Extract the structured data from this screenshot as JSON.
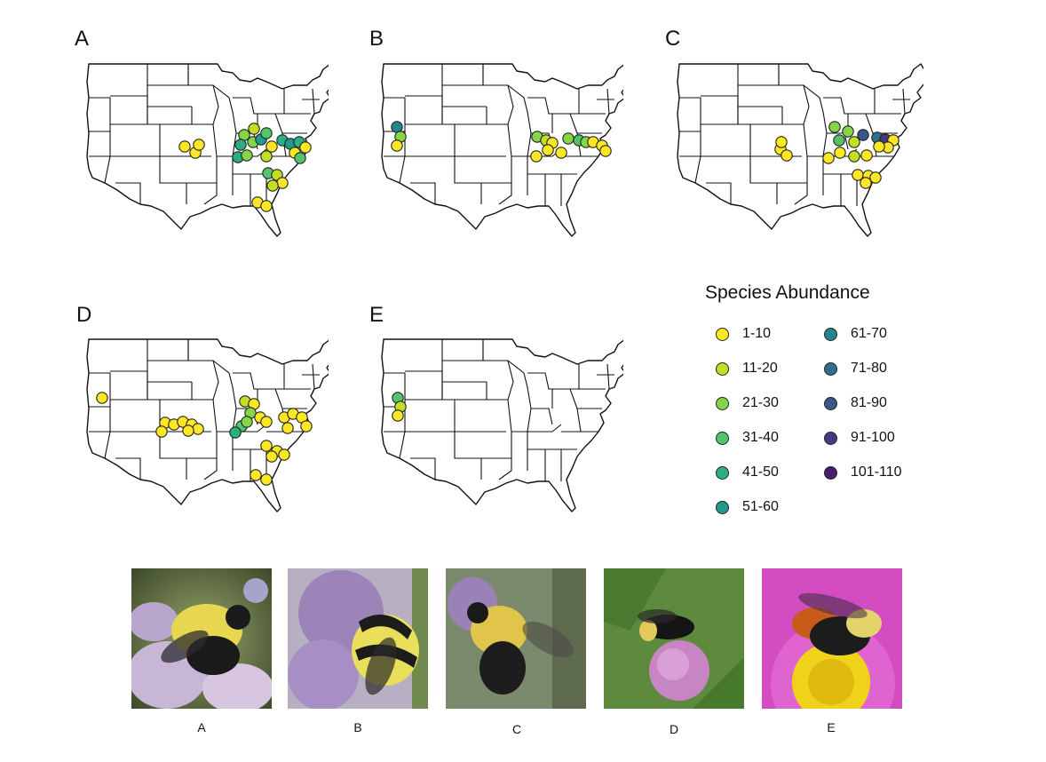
{
  "panels": [
    {
      "id": "A",
      "points": [
        [
          208,
          165,
          0
        ],
        [
          220,
          172,
          0
        ],
        [
          224,
          163,
          0
        ],
        [
          275,
          152,
          2
        ],
        [
          286,
          145,
          1
        ],
        [
          285,
          160,
          2
        ],
        [
          271,
          163,
          4
        ],
        [
          294,
          157,
          5
        ],
        [
          300,
          150,
          3
        ],
        [
          306,
          165,
          0
        ],
        [
          318,
          158,
          4
        ],
        [
          327,
          162,
          5
        ],
        [
          337,
          160,
          4
        ],
        [
          344,
          166,
          0
        ],
        [
          332,
          172,
          0
        ],
        [
          338,
          178,
          3
        ],
        [
          268,
          177,
          4
        ],
        [
          278,
          175,
          2
        ],
        [
          300,
          176,
          1
        ],
        [
          302,
          195,
          3
        ],
        [
          312,
          197,
          1
        ],
        [
          318,
          206,
          0
        ],
        [
          307,
          209,
          1
        ],
        [
          290,
          228,
          0
        ],
        [
          300,
          232,
          0
        ]
      ]
    },
    {
      "id": "B",
      "points": [
        [
          447,
          143,
          6
        ],
        [
          451,
          154,
          2
        ],
        [
          447,
          164,
          0
        ],
        [
          605,
          154,
          2
        ],
        [
          615,
          158,
          1
        ],
        [
          622,
          161,
          0
        ],
        [
          640,
          156,
          2
        ],
        [
          652,
          158,
          3
        ],
        [
          660,
          160,
          2
        ],
        [
          668,
          160,
          0
        ],
        [
          678,
          164,
          0
        ],
        [
          682,
          170,
          0
        ],
        [
          604,
          176,
          0
        ],
        [
          617,
          169,
          0
        ],
        [
          632,
          172,
          0
        ]
      ]
    },
    {
      "id": "C",
      "points": [
        [
          879,
          168,
          0
        ],
        [
          886,
          175,
          0
        ],
        [
          880,
          160,
          0
        ],
        [
          940,
          143,
          2
        ],
        [
          955,
          148,
          2
        ],
        [
          945,
          158,
          3
        ],
        [
          962,
          160,
          1
        ],
        [
          972,
          152,
          8
        ],
        [
          988,
          155,
          7
        ],
        [
          997,
          157,
          9
        ],
        [
          1006,
          158,
          0
        ],
        [
          1000,
          166,
          0
        ],
        [
          990,
          165,
          0
        ],
        [
          946,
          172,
          0
        ],
        [
          933,
          178,
          0
        ],
        [
          962,
          176,
          1
        ],
        [
          976,
          175,
          0
        ],
        [
          966,
          197,
          0
        ],
        [
          978,
          198,
          0
        ],
        [
          975,
          206,
          0
        ],
        [
          986,
          200,
          0
        ]
      ]
    },
    {
      "id": "D",
      "points": [
        [
          115,
          448,
          0
        ],
        [
          186,
          476,
          0
        ],
        [
          196,
          478,
          0
        ],
        [
          206,
          475,
          0
        ],
        [
          216,
          478,
          0
        ],
        [
          223,
          483,
          0
        ],
        [
          182,
          486,
          0
        ],
        [
          212,
          485,
          0
        ],
        [
          276,
          452,
          1
        ],
        [
          286,
          455,
          0
        ],
        [
          282,
          465,
          2
        ],
        [
          293,
          470,
          0
        ],
        [
          272,
          480,
          3
        ],
        [
          265,
          487,
          4
        ],
        [
          278,
          475,
          2
        ],
        [
          300,
          475,
          0
        ],
        [
          320,
          470,
          0
        ],
        [
          330,
          466,
          0
        ],
        [
          340,
          470,
          0
        ],
        [
          345,
          480,
          0
        ],
        [
          324,
          482,
          0
        ],
        [
          300,
          502,
          0
        ],
        [
          312,
          508,
          0
        ],
        [
          320,
          512,
          0
        ],
        [
          306,
          514,
          0
        ],
        [
          288,
          535,
          0
        ],
        [
          300,
          540,
          0
        ]
      ]
    },
    {
      "id": "E",
      "points": [
        [
          448,
          448,
          3
        ],
        [
          451,
          458,
          1
        ],
        [
          448,
          468,
          0
        ]
      ]
    }
  ],
  "legend": {
    "title": "Species Abundance",
    "items": [
      {
        "label": "1-10",
        "color": "#FDE725"
      },
      {
        "label": "11-20",
        "color": "#C2DF23"
      },
      {
        "label": "21-30",
        "color": "#86D549"
      },
      {
        "label": "31-40",
        "color": "#52C569"
      },
      {
        "label": "41-50",
        "color": "#2AB07F"
      },
      {
        "label": "51-60",
        "color": "#1E9B8A"
      },
      {
        "label": "61-70",
        "color": "#25858E"
      },
      {
        "label": "71-80",
        "color": "#2D708E"
      },
      {
        "label": "81-90",
        "color": "#38588C"
      },
      {
        "label": "91-100",
        "color": "#443983"
      },
      {
        "label": "101-110",
        "color": "#481F70"
      }
    ]
  },
  "photos": [
    {
      "caption": "A"
    },
    {
      "caption": "B"
    },
    {
      "caption": "C"
    },
    {
      "caption": "D"
    },
    {
      "caption": "E"
    }
  ]
}
